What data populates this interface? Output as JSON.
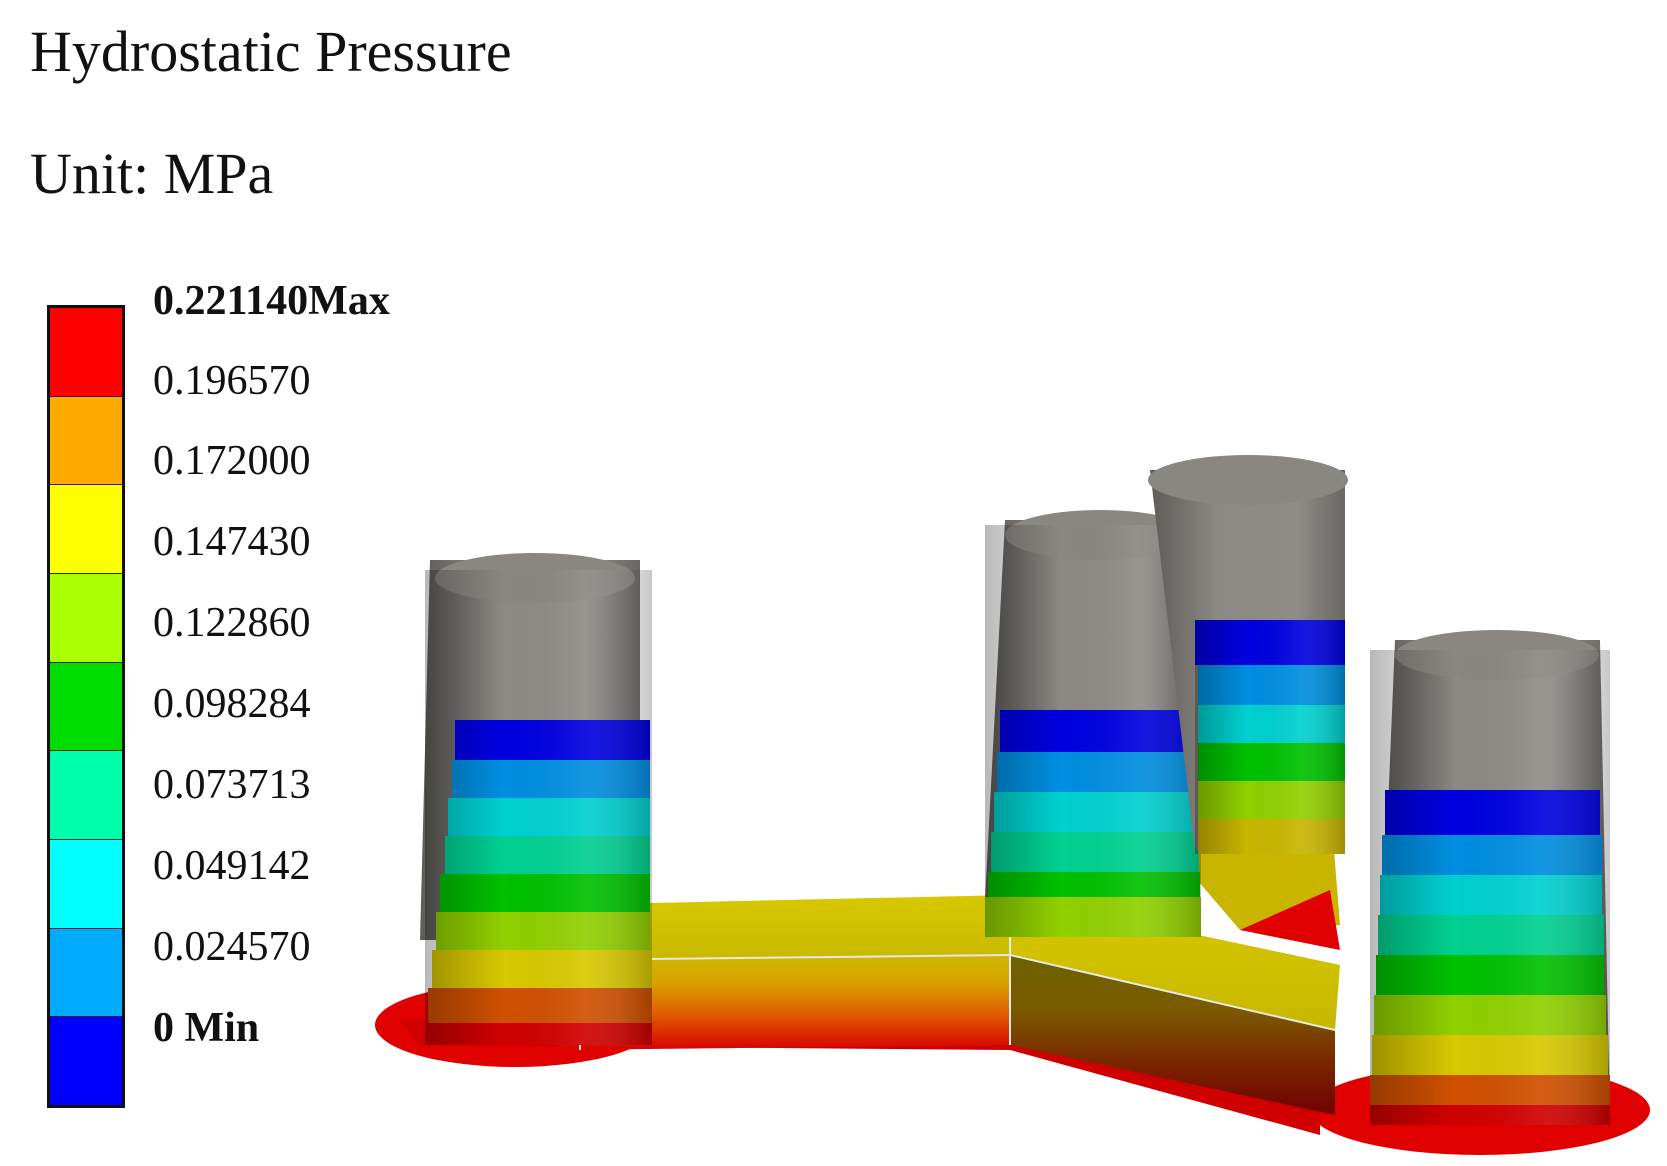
{
  "title": "Hydrostatic Pressure",
  "unit_label": "Unit: MPa",
  "legend": {
    "max_label": "0.221140Max",
    "min_label": "0 Min",
    "values": [
      "0.196570",
      "0.172000",
      "0.147430",
      "0.122860",
      "0.098284",
      "0.073713",
      "0.049142",
      "0.024570"
    ],
    "colors": [
      "#ff0000",
      "#ffaa00",
      "#ffff00",
      "#aaff00",
      "#00dd00",
      "#00ffaa",
      "#00ffff",
      "#00aaff",
      "#0000ff"
    ]
  },
  "model": {
    "top_color": "#8a8783",
    "base_color": "#d5c600",
    "footing_color": "#e00000"
  }
}
